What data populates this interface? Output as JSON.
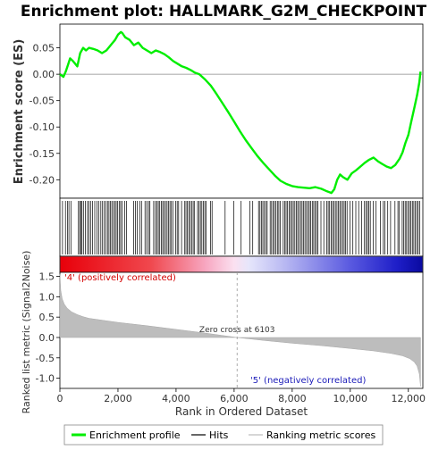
{
  "chart_data": {
    "type": "line",
    "title": "Enrichment plot: HALLMARK_G2M_CHECKPOINT",
    "xlabel": "Rank in Ordered Dataset",
    "ylabel_top": "Enrichment score (ES)",
    "ylabel_bottom": "Ranked list metric (Signal2Noise)",
    "xlim": [
      0,
      12500
    ],
    "x_ticks": [
      0,
      2000,
      4000,
      6000,
      8000,
      10000,
      12000
    ],
    "x_tick_labels": [
      "0",
      "2,000",
      "4,000",
      "6,000",
      "8,000",
      "10,000",
      "12,000"
    ],
    "es_ylim": [
      -0.235,
      0.095
    ],
    "es_ticks": [
      0.05,
      0.0,
      -0.05,
      -0.1,
      -0.15,
      -0.2
    ],
    "es_tick_labels": [
      "0.05",
      "0.00",
      "-0.05",
      "-0.10",
      "-0.15",
      "-0.20"
    ],
    "metric_ylim": [
      -1.25,
      1.6
    ],
    "metric_ticks": [
      1.5,
      1.0,
      0.5,
      0.0,
      -0.5,
      -1.0
    ],
    "metric_tick_labels": [
      "1.5",
      "1.0",
      "0.5",
      "0.0",
      "-0.5",
      "-1.0"
    ],
    "series": [
      {
        "name": "Enrichment profile",
        "color": "#00ee00",
        "x": [
          0,
          120,
          200,
          280,
          350,
          450,
          600,
          700,
          800,
          900,
          1000,
          1150,
          1300,
          1450,
          1600,
          1750,
          1900,
          2000,
          2100,
          2150,
          2250,
          2400,
          2550,
          2700,
          2850,
          3000,
          3150,
          3300,
          3450,
          3600,
          3750,
          3900,
          4050,
          4200,
          4350,
          4500,
          4650,
          4800,
          5000,
          5200,
          5400,
          5600,
          5800,
          6000,
          6200,
          6400,
          6600,
          6800,
          7000,
          7200,
          7400,
          7600,
          7800,
          8000,
          8200,
          8400,
          8600,
          8800,
          9000,
          9200,
          9350,
          9450,
          9550,
          9650,
          9750,
          9900,
          10050,
          10200,
          10350,
          10500,
          10650,
          10800,
          10950,
          11100,
          11250,
          11400,
          11550,
          11700,
          11800,
          11900,
          12000,
          12100,
          12200,
          12300,
          12380,
          12420
        ],
        "y": [
          0.0,
          -0.005,
          0.005,
          0.018,
          0.03,
          0.025,
          0.015,
          0.04,
          0.05,
          0.045,
          0.05,
          0.048,
          0.045,
          0.04,
          0.045,
          0.055,
          0.065,
          0.075,
          0.08,
          0.078,
          0.07,
          0.065,
          0.055,
          0.06,
          0.05,
          0.045,
          0.04,
          0.045,
          0.042,
          0.038,
          0.032,
          0.025,
          0.02,
          0.015,
          0.012,
          0.008,
          0.003,
          0.0,
          -0.01,
          -0.022,
          -0.038,
          -0.055,
          -0.072,
          -0.09,
          -0.108,
          -0.125,
          -0.14,
          -0.155,
          -0.168,
          -0.18,
          -0.192,
          -0.202,
          -0.208,
          -0.212,
          -0.214,
          -0.215,
          -0.216,
          -0.214,
          -0.217,
          -0.222,
          -0.225,
          -0.218,
          -0.2,
          -0.19,
          -0.195,
          -0.2,
          -0.188,
          -0.182,
          -0.175,
          -0.168,
          -0.162,
          -0.158,
          -0.165,
          -0.17,
          -0.175,
          -0.178,
          -0.172,
          -0.16,
          -0.148,
          -0.13,
          -0.115,
          -0.09,
          -0.065,
          -0.04,
          -0.015,
          0.005
        ]
      }
    ],
    "hits": [
      90,
      190,
      260,
      310,
      380,
      640,
      680,
      720,
      760,
      810,
      880,
      950,
      1000,
      1060,
      1120,
      1200,
      1280,
      1340,
      1410,
      1470,
      1530,
      1580,
      1640,
      1690,
      1740,
      1790,
      1840,
      1890,
      1940,
      1990,
      2040,
      2090,
      2140,
      2230,
      2290,
      2540,
      2600,
      2660,
      2750,
      2810,
      2930,
      2990,
      3050,
      3100,
      3230,
      3290,
      3340,
      3390,
      3440,
      3490,
      3540,
      3590,
      3640,
      3690,
      3740,
      3790,
      3840,
      3890,
      3990,
      4040,
      4090,
      4190,
      4290,
      4340,
      4390,
      4440,
      4490,
      4540,
      4590,
      4640,
      4740,
      4790,
      4840,
      4890,
      4940,
      4990,
      5040,
      5190,
      5240,
      5690,
      5990,
      6240,
      6540,
      6640,
      6840,
      6890,
      6940,
      6990,
      7040,
      7090,
      7140,
      7240,
      7290,
      7340,
      7390,
      7440,
      7490,
      7540,
      7590,
      7690,
      7740,
      7790,
      7840,
      7890,
      7940,
      7990,
      8040,
      8090,
      8140,
      8190,
      8240,
      8290,
      8340,
      8390,
      8440,
      8490,
      8540,
      8590,
      8640,
      8690,
      8740,
      8790,
      8840,
      8890,
      8990,
      9090,
      9190,
      9240,
      9290,
      9340,
      9390,
      9440,
      9490,
      9540,
      9590,
      9640,
      9690,
      9740,
      9790,
      9840,
      9890,
      9990,
      10090,
      10190,
      10290,
      10390,
      10490,
      10540,
      10590,
      10640,
      10690,
      10790,
      10890,
      11040,
      11140,
      11190,
      11290,
      11390,
      11540,
      11640,
      11690,
      11790,
      11840,
      11890,
      11940,
      11990,
      12040,
      12090,
      12140,
      12190,
      12240,
      12290,
      12340,
      12390
    ],
    "zero_cross_label": "Zero cross at 6103",
    "zero_cross": 6103,
    "pos_label": "'4' (positively correlated)",
    "neg_label": "'5' (negatively correlated)",
    "metric_profile": {
      "x": [
        0,
        30,
        80,
        150,
        250,
        400,
        600,
        800,
        1000,
        1500,
        2000,
        3000,
        4000,
        5000,
        6103,
        7000,
        8000,
        9000,
        10000,
        10800,
        11400,
        11800,
        12050,
        12200,
        12300,
        12380,
        12420
      ],
      "y": [
        1.55,
        1.15,
        0.95,
        0.82,
        0.72,
        0.63,
        0.56,
        0.51,
        0.47,
        0.42,
        0.37,
        0.29,
        0.2,
        0.11,
        0.0,
        -0.07,
        -0.14,
        -0.2,
        -0.27,
        -0.33,
        -0.39,
        -0.45,
        -0.52,
        -0.6,
        -0.7,
        -0.9,
        -1.2
      ]
    },
    "legend": [
      {
        "label": "Enrichment profile",
        "color": "#00ee00"
      },
      {
        "label": "Hits",
        "color": "#000000"
      },
      {
        "label": "Ranking metric scores",
        "color": "#bbbbbb"
      }
    ]
  }
}
